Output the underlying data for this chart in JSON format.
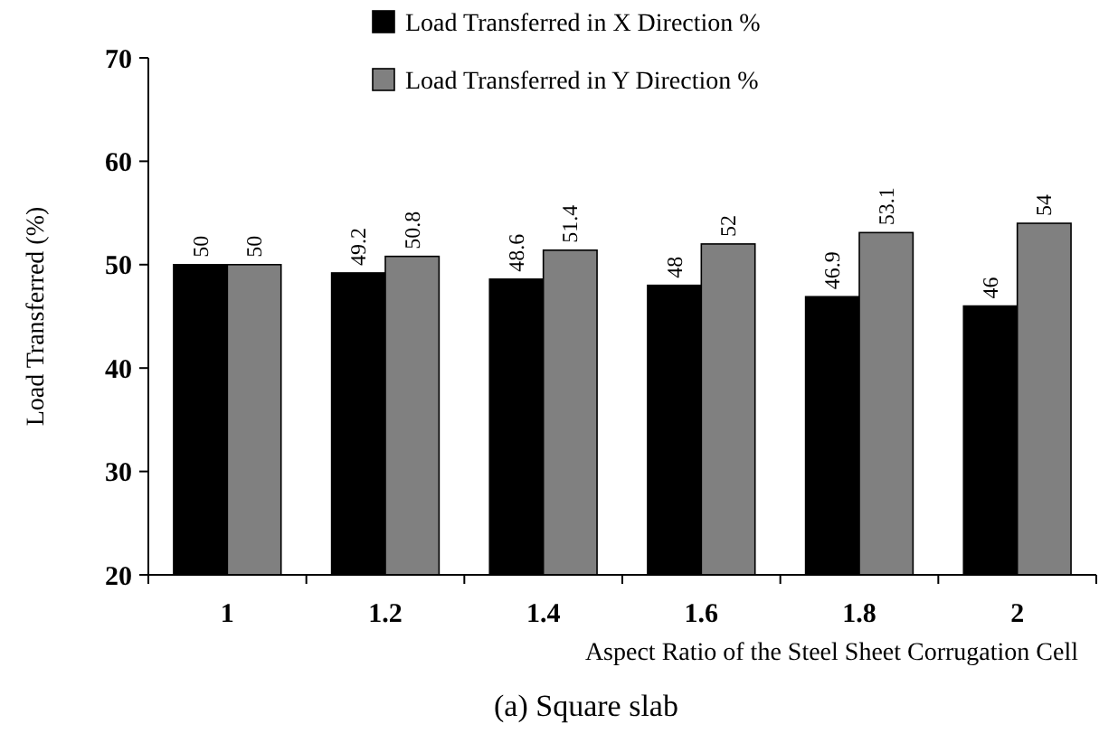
{
  "chart_data": {
    "type": "bar",
    "title": "(a) Square slab",
    "xlabel": "Aspect Ratio of the Steel Sheet Corrugation Cell",
    "ylabel": "Load Transferred (%)",
    "categories": [
      "1",
      "1.2",
      "1.4",
      "1.6",
      "1.8",
      "2"
    ],
    "series": [
      {
        "name": "Load Transferred in X Direction %",
        "color": "#000000",
        "values": [
          50,
          49.2,
          48.6,
          48,
          46.9,
          46
        ]
      },
      {
        "name": "Load Transferred in Y Direction %",
        "color": "#808080",
        "values": [
          50,
          50.8,
          51.4,
          52,
          53.1,
          54
        ]
      }
    ],
    "ylim": [
      20,
      70
    ],
    "yticks": [
      20,
      30,
      40,
      50,
      60,
      70
    ],
    "data_labels": true,
    "legend": "top",
    "grid": false
  }
}
